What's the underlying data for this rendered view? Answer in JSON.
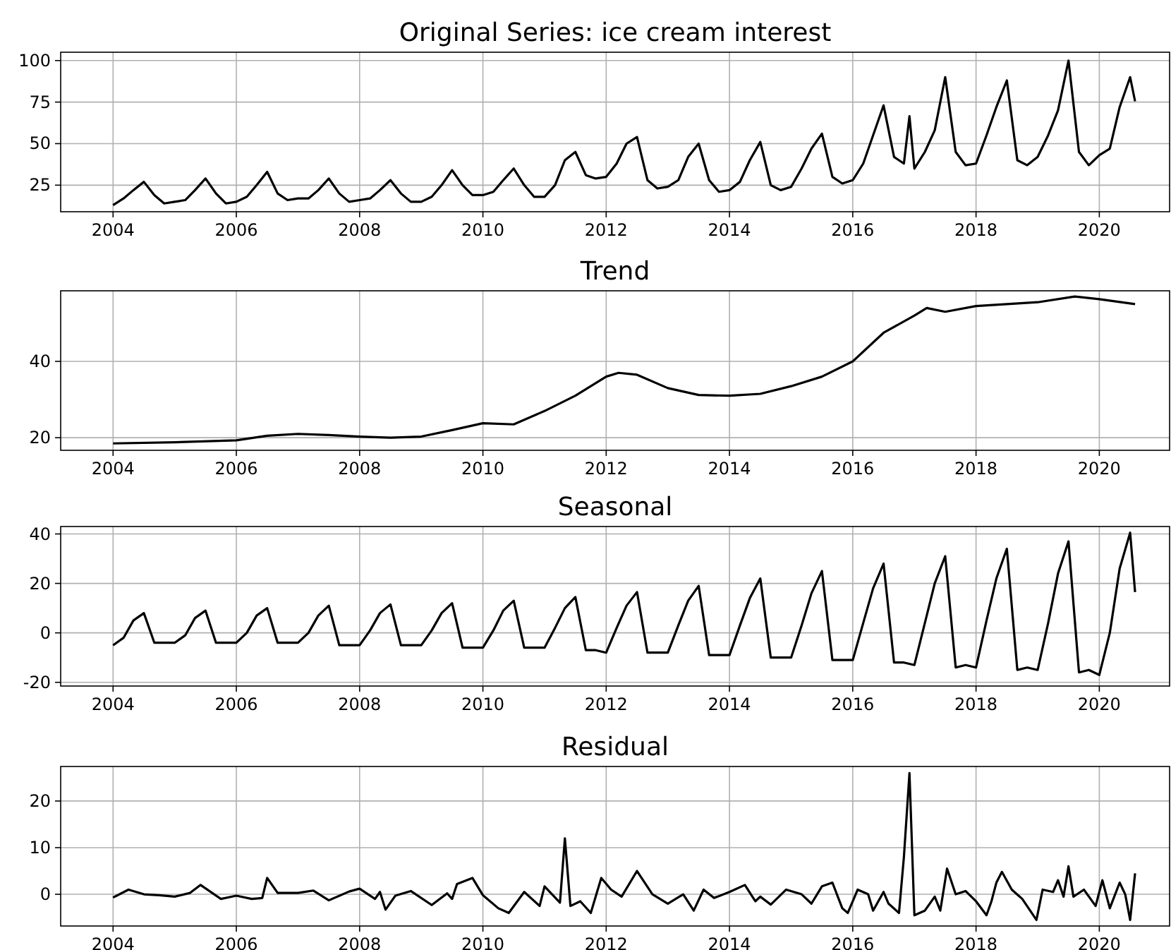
{
  "chart_data": [
    {
      "type": "line",
      "title": "Original Series: ice cream interest",
      "xlim": [
        2003.15,
        2021.14
      ],
      "xticks": [
        2004,
        2006,
        2008,
        2010,
        2012,
        2014,
        2016,
        2018,
        2020
      ],
      "ylim": [
        9,
        105
      ],
      "yticks": [
        25,
        50,
        75,
        100
      ],
      "grid": true,
      "x": [
        2004,
        2004.17,
        2004.33,
        2004.5,
        2004.67,
        2004.83,
        2005,
        2005.17,
        2005.33,
        2005.5,
        2005.67,
        2005.83,
        2006,
        2006.17,
        2006.33,
        2006.5,
        2006.67,
        2006.83,
        2007,
        2007.17,
        2007.33,
        2007.5,
        2007.67,
        2007.83,
        2008,
        2008.17,
        2008.33,
        2008.5,
        2008.67,
        2008.83,
        2009,
        2009.17,
        2009.33,
        2009.5,
        2009.67,
        2009.83,
        2010,
        2010.17,
        2010.33,
        2010.5,
        2010.67,
        2010.83,
        2011,
        2011.17,
        2011.33,
        2011.5,
        2011.67,
        2011.83,
        2012,
        2012.17,
        2012.33,
        2012.5,
        2012.67,
        2012.83,
        2013,
        2013.17,
        2013.33,
        2013.5,
        2013.67,
        2013.83,
        2014,
        2014.17,
        2014.33,
        2014.5,
        2014.67,
        2014.83,
        2015,
        2015.17,
        2015.33,
        2015.5,
        2015.67,
        2015.83,
        2016,
        2016.17,
        2016.33,
        2016.5,
        2016.67,
        2016.83,
        2016.92,
        2017,
        2017.17,
        2017.33,
        2017.5,
        2017.67,
        2017.83,
        2018,
        2018.17,
        2018.33,
        2018.5,
        2018.67,
        2018.83,
        2019,
        2019.17,
        2019.33,
        2019.5,
        2019.67,
        2019.83,
        2020,
        2020.17,
        2020.33,
        2020.5,
        2020.58
      ],
      "series": [
        {
          "color": "#000000",
          "values": [
            13,
            17,
            22,
            27,
            19,
            14,
            15,
            16,
            22,
            29,
            20,
            14,
            15,
            18,
            25,
            33,
            20,
            16,
            17,
            17,
            22,
            29,
            20,
            15,
            16,
            17,
            22,
            28,
            20,
            15,
            15,
            18,
            25,
            34,
            25,
            19,
            19,
            21,
            28,
            35,
            25,
            18,
            18,
            25,
            40,
            45,
            31,
            29,
            30,
            38,
            50,
            54,
            28,
            23,
            24,
            28,
            42,
            50,
            28,
            21,
            22,
            27,
            40,
            51,
            25,
            22,
            24,
            35,
            47,
            56,
            30,
            26,
            28,
            38,
            55,
            73,
            42,
            38,
            66.5,
            35,
            45,
            58,
            90,
            45,
            37,
            38,
            55,
            72,
            88,
            40,
            37,
            42,
            55,
            70,
            100,
            45,
            37,
            43,
            47,
            72,
            90,
            75.5
          ]
        }
      ]
    },
    {
      "type": "line",
      "title": "Trend",
      "xlim": [
        2003.15,
        2021.14
      ],
      "xticks": [
        2004,
        2006,
        2008,
        2010,
        2012,
        2014,
        2016,
        2018,
        2020
      ],
      "ylim": [
        16.7,
        58.5
      ],
      "yticks": [
        20,
        40
      ],
      "grid": true,
      "x": [
        2004,
        2005,
        2006,
        2006.5,
        2007,
        2007.5,
        2008,
        2008.5,
        2009,
        2009.5,
        2010,
        2010.5,
        2011,
        2011.5,
        2012,
        2012.2,
        2012.5,
        2013,
        2013.5,
        2014,
        2014.5,
        2015,
        2015.5,
        2016,
        2016.5,
        2017,
        2017.2,
        2017.5,
        2018,
        2018.5,
        2019,
        2019.6,
        2020,
        2020.58
      ],
      "series": [
        {
          "color": "#000000",
          "values": [
            18.5,
            18.8,
            19.3,
            20.5,
            21,
            20.7,
            20.3,
            20,
            20.3,
            22,
            23.8,
            23.5,
            27,
            31,
            36,
            37,
            36.5,
            33,
            31.2,
            31,
            31.5,
            33.5,
            36,
            40,
            47.5,
            52,
            54,
            53,
            54.5,
            55,
            55.5,
            57,
            56.3,
            55
          ]
        }
      ]
    },
    {
      "type": "line",
      "title": "Seasonal",
      "xlim": [
        2003.15,
        2021.14
      ],
      "xticks": [
        2004,
        2006,
        2008,
        2010,
        2012,
        2014,
        2016,
        2018,
        2020
      ],
      "ylim": [
        -21.5,
        43
      ],
      "yticks": [
        -20,
        0,
        20,
        40
      ],
      "grid": true,
      "x": [
        2004,
        2004.17,
        2004.33,
        2004.5,
        2004.67,
        2004.83,
        2005,
        2005.17,
        2005.33,
        2005.5,
        2005.67,
        2005.83,
        2006,
        2006.17,
        2006.33,
        2006.5,
        2006.67,
        2006.83,
        2007,
        2007.17,
        2007.33,
        2007.5,
        2007.67,
        2007.83,
        2008,
        2008.17,
        2008.33,
        2008.5,
        2008.67,
        2008.83,
        2009,
        2009.17,
        2009.33,
        2009.5,
        2009.67,
        2009.83,
        2010,
        2010.17,
        2010.33,
        2010.5,
        2010.67,
        2010.83,
        2011,
        2011.17,
        2011.33,
        2011.5,
        2011.67,
        2011.83,
        2012,
        2012.17,
        2012.33,
        2012.5,
        2012.67,
        2012.83,
        2013,
        2013.17,
        2013.33,
        2013.5,
        2013.67,
        2013.83,
        2014,
        2014.17,
        2014.33,
        2014.5,
        2014.67,
        2014.83,
        2015,
        2015.17,
        2015.33,
        2015.5,
        2015.67,
        2015.83,
        2016,
        2016.17,
        2016.33,
        2016.5,
        2016.67,
        2016.83,
        2017,
        2017.17,
        2017.33,
        2017.5,
        2017.67,
        2017.83,
        2018,
        2018.17,
        2018.33,
        2018.5,
        2018.67,
        2018.83,
        2019,
        2019.17,
        2019.33,
        2019.5,
        2019.67,
        2019.83,
        2020,
        2020.17,
        2020.33,
        2020.5,
        2020.58
      ],
      "series": [
        {
          "color": "#000000",
          "values": [
            -5,
            -2,
            5,
            8,
            -4,
            -4,
            -4,
            -1,
            6,
            9,
            -4,
            -4,
            -4,
            0,
            7,
            10,
            -4,
            -4,
            -4,
            0,
            7,
            11,
            -5,
            -5,
            -5,
            1,
            8,
            11.5,
            -5,
            -5,
            -5,
            1,
            8,
            12,
            -6,
            -6,
            -6,
            1,
            9,
            13,
            -6,
            -6,
            -6,
            2,
            10,
            14.5,
            -7,
            -7,
            -8,
            2,
            11,
            16.5,
            -8,
            -8,
            -8,
            3,
            13,
            19,
            -9,
            -9,
            -9,
            3,
            14,
            22,
            -10,
            -10,
            -10,
            3,
            16,
            25,
            -11,
            -11,
            -11,
            4,
            18,
            28,
            -12,
            -12,
            -13,
            4,
            20,
            31,
            -14,
            -13,
            -14,
            5,
            22,
            34,
            -15,
            -14,
            -15,
            4,
            24,
            37,
            -16,
            -15,
            -17,
            0,
            26,
            40.5,
            16.5
          ]
        }
      ]
    },
    {
      "type": "line",
      "title": "Residual",
      "xlim": [
        2003.15,
        2021.14
      ],
      "xticks": [
        2004,
        2006,
        2008,
        2010,
        2012,
        2014,
        2016,
        2018,
        2020
      ],
      "ylim": [
        -6.8,
        27.4
      ],
      "yticks": [
        0,
        10,
        20
      ],
      "grid": true,
      "x": [
        2004,
        2004.25,
        2004.5,
        2004.75,
        2005,
        2005.25,
        2005.42,
        2005.75,
        2006,
        2006.25,
        2006.42,
        2006.5,
        2006.67,
        2007,
        2007.25,
        2007.5,
        2007.83,
        2008,
        2008.25,
        2008.33,
        2008.42,
        2008.58,
        2008.83,
        2009.17,
        2009.42,
        2009.5,
        2009.58,
        2009.83,
        2010,
        2010.25,
        2010.42,
        2010.67,
        2010.92,
        2011,
        2011.25,
        2011.33,
        2011.42,
        2011.58,
        2011.75,
        2011.92,
        2012.08,
        2012.25,
        2012.5,
        2012.75,
        2013,
        2013.25,
        2013.42,
        2013.58,
        2013.75,
        2014,
        2014.25,
        2014.42,
        2014.5,
        2014.67,
        2014.92,
        2015.17,
        2015.33,
        2015.5,
        2015.67,
        2015.83,
        2015.92,
        2016.08,
        2016.25,
        2016.33,
        2016.5,
        2016.58,
        2016.75,
        2016.83,
        2016.92,
        2017,
        2017.17,
        2017.33,
        2017.42,
        2017.53,
        2017.67,
        2017.83,
        2018,
        2018.17,
        2018.25,
        2018.33,
        2018.42,
        2018.58,
        2018.75,
        2018.98,
        2019.08,
        2019.25,
        2019.33,
        2019.42,
        2019.5,
        2019.58,
        2019.75,
        2019.94,
        2020.05,
        2020.17,
        2020.33,
        2020.42,
        2020.5,
        2020.58
      ],
      "series": [
        {
          "color": "#000000",
          "values": [
            -0.7,
            1,
            0,
            -0.2,
            -0.5,
            0.3,
            2,
            -1,
            -0.3,
            -1,
            -0.8,
            3.5,
            0.3,
            0.3,
            0.8,
            -1.3,
            0.6,
            1.2,
            -1,
            0.5,
            -3.3,
            -0.3,
            0.7,
            -2.3,
            0.2,
            -1,
            2.2,
            3.5,
            -0.2,
            -3,
            -4,
            0.5,
            -2.5,
            1.7,
            -1.8,
            12,
            -2.5,
            -1.5,
            -4,
            3.5,
            1,
            -0.5,
            5,
            0,
            -2,
            0,
            -3.5,
            1,
            -0.8,
            0.5,
            2,
            -1.5,
            -0.5,
            -2.2,
            1,
            0,
            -2,
            1.7,
            2.5,
            -3,
            -4,
            1,
            0,
            -3.5,
            0.5,
            -2,
            -4,
            8,
            26,
            -4.5,
            -3.5,
            -0.5,
            -3.5,
            5.5,
            0,
            0.7,
            -1.5,
            -4.5,
            -1.5,
            2.5,
            4.8,
            1,
            -1,
            -5.5,
            1,
            0.5,
            3,
            -0.5,
            6,
            -0.5,
            1,
            -2.5,
            3,
            -3,
            2.5,
            0,
            -5.5,
            4.5
          ]
        }
      ]
    }
  ]
}
